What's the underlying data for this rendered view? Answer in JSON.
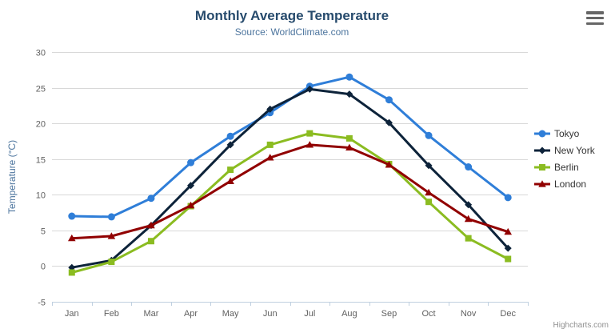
{
  "header": {
    "title": "Monthly Average Temperature",
    "subtitle": "Source: WorldClimate.com"
  },
  "chart_data": {
    "type": "line",
    "title": "Monthly Average Temperature",
    "subtitle": "Source: WorldClimate.com",
    "xlabel": "",
    "ylabel": "Temperature (°C)",
    "categories": [
      "Jan",
      "Feb",
      "Mar",
      "Apr",
      "May",
      "Jun",
      "Jul",
      "Aug",
      "Sep",
      "Oct",
      "Nov",
      "Dec"
    ],
    "ylim": [
      -5,
      30
    ],
    "ytick_step": 5,
    "yticks": [
      -5,
      0,
      5,
      10,
      15,
      20,
      25,
      30
    ],
    "grid": true,
    "legend_position": "right",
    "series": [
      {
        "name": "Tokyo",
        "color": "#2f7ed8",
        "marker": "circle",
        "values": [
          7.0,
          6.9,
          9.5,
          14.5,
          18.2,
          21.5,
          25.2,
          26.5,
          23.3,
          18.3,
          13.9,
          9.6
        ]
      },
      {
        "name": "New York",
        "color": "#0d233a",
        "marker": "diamond",
        "values": [
          -0.2,
          0.8,
          5.7,
          11.3,
          17.0,
          22.0,
          24.8,
          24.1,
          20.1,
          14.1,
          8.6,
          2.5
        ]
      },
      {
        "name": "Berlin",
        "color": "#8bbc21",
        "marker": "square",
        "values": [
          -0.9,
          0.6,
          3.5,
          8.4,
          13.5,
          17.0,
          18.6,
          17.9,
          14.3,
          9.0,
          3.9,
          1.0
        ]
      },
      {
        "name": "London",
        "color": "#910000",
        "marker": "triangle",
        "values": [
          3.9,
          4.2,
          5.7,
          8.5,
          11.9,
          15.2,
          17.0,
          16.6,
          14.2,
          10.3,
          6.6,
          4.8
        ]
      }
    ]
  },
  "credits": {
    "text": "Highcharts.com"
  },
  "icons": {
    "export_menu": "hamburger-icon"
  },
  "colors": {
    "title": "#274b6d",
    "subtitle": "#4d759e",
    "axis_title": "#4d759e",
    "axis_label": "#606060",
    "grid_line": "#d8d8d8",
    "axis_line": "#c0d0e0",
    "legend_text": "#333333",
    "credits_text": "#909090",
    "menu_icon": "#666666"
  }
}
